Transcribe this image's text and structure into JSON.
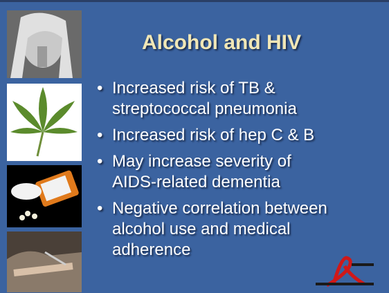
{
  "slide": {
    "title": "Alcohol and HIV",
    "bullets": [
      {
        "lines": [
          "Increased risk of TB &",
          "streptococcal pneumonia"
        ]
      },
      {
        "lines": [
          "Increased risk of hep C & B"
        ]
      },
      {
        "lines": [
          "May increase severity of",
          "AIDS-related dementia"
        ]
      },
      {
        "lines": [
          "Negative correlation between",
          "alcohol use and medical",
          "adherence"
        ]
      }
    ]
  }
}
